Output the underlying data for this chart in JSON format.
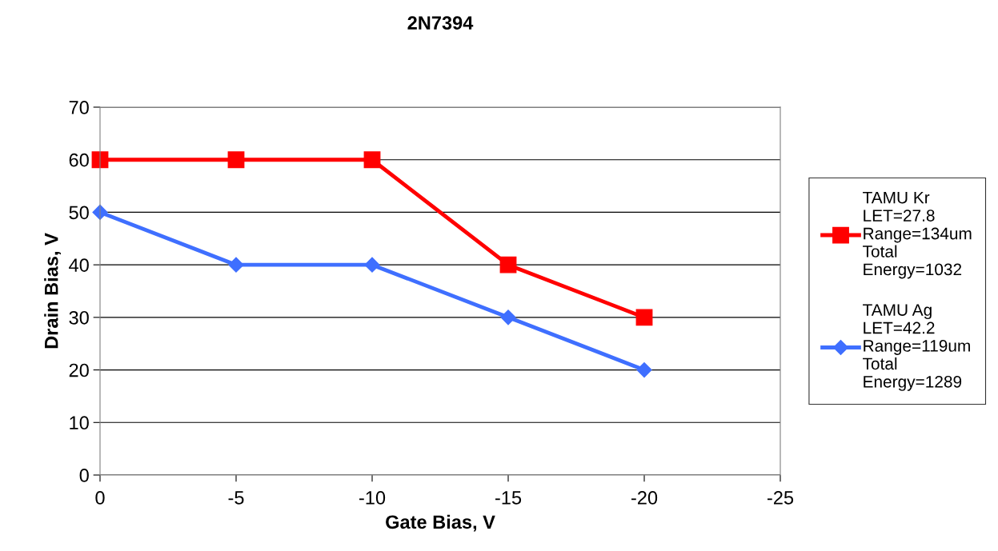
{
  "chart_data": {
    "type": "line",
    "title": "2N7394",
    "xlabel": "Gate Bias, V",
    "ylabel": "Drain Bias, V",
    "x": [
      0,
      -5,
      -10,
      -15,
      -20
    ],
    "series": [
      {
        "name": "TAMU Kr\nLET=27.8\nRange=134um\nTotal\nEnergy=1032",
        "color": "#ff0000",
        "marker": "square",
        "values": [
          60,
          60,
          60,
          40,
          30
        ]
      },
      {
        "name": "TAMU Ag\nLET=42.2\nRange=119um\nTotal\nEnergy=1289",
        "color": "#3f6fff",
        "marker": "diamond",
        "values": [
          50,
          40,
          40,
          30,
          20
        ]
      }
    ],
    "xlim": [
      0,
      -25
    ],
    "xticks": [
      0,
      -5,
      -10,
      -15,
      -20,
      -25
    ],
    "ylim": [
      0,
      70
    ],
    "yticks": [
      0,
      10,
      20,
      30,
      40,
      50,
      60,
      70
    ],
    "grid": "y",
    "legend": "right",
    "line_style": "solid"
  }
}
